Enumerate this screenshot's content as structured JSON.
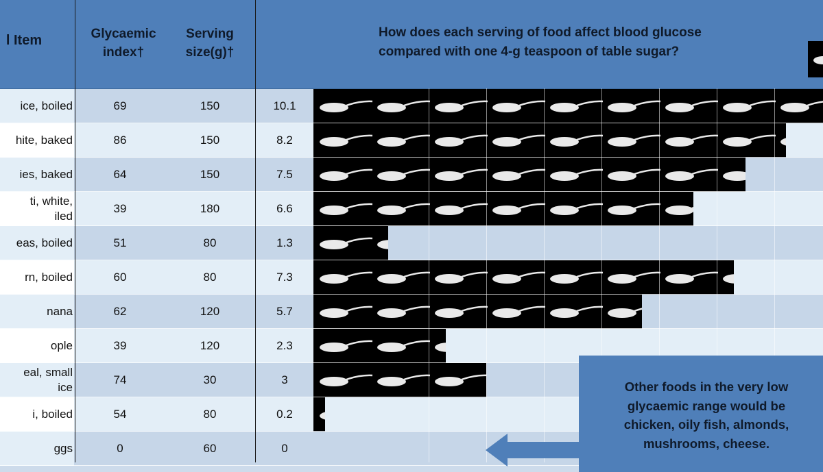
{
  "chart_data": {
    "type": "table",
    "columns": [
      "Food Item",
      "Glycaemic index†",
      "Serving size(g)†",
      "",
      ""
    ],
    "question": "How does each serving of food affect blood glucose compared with one 4-g teaspoon of table sugar?",
    "rows": [
      {
        "food": "ice, boiled",
        "gi": "69",
        "serving": "150",
        "teaspoons": 10.1
      },
      {
        "food": "hite, baked",
        "gi": "86",
        "serving": "150",
        "teaspoons": 8.2
      },
      {
        "food": "ies, baked",
        "gi": "64",
        "serving": "150",
        "teaspoons": 7.5
      },
      {
        "food": "ti, white,\niled",
        "gi": "39",
        "serving": "180",
        "teaspoons": 6.6
      },
      {
        "food": "eas, boiled",
        "gi": "51",
        "serving": "80",
        "teaspoons": 1.3
      },
      {
        "food": "rn, boiled",
        "gi": "60",
        "serving": "80",
        "teaspoons": 7.3
      },
      {
        "food": "nana",
        "gi": "62",
        "serving": "120",
        "teaspoons": 5.7
      },
      {
        "food": "ople",
        "gi": "39",
        "serving": "120",
        "teaspoons": 2.3
      },
      {
        "food": "eal, small\nice",
        "gi": "74",
        "serving": "30",
        "teaspoons": 3
      },
      {
        "food": "i, boiled",
        "gi": "54",
        "serving": "80",
        "teaspoons": 0.2
      },
      {
        "food": "ggs",
        "gi": "0",
        "serving": "60",
        "teaspoons": 0
      }
    ],
    "teaspoon_unit": "one 4-g teaspoon of table sugar"
  },
  "header": {
    "item_label": "l Item",
    "gi_label_1": "Glycaemic",
    "gi_label_2": "index†",
    "serving_label_1": "Serving",
    "serving_label_2": "size(g)†",
    "question_line_1": "How does each serving of food affect blood glucose",
    "question_line_2": "compared with one 4-g teaspoon of table sugar?"
  },
  "callout": {
    "lines": [
      "Other foods in the very low",
      "glycaemic range would be",
      "chicken, oily fish, almonds,",
      "mushrooms, cheese."
    ]
  },
  "colors": {
    "header_blue": "#4f7fb9",
    "row_light": "#e3eef7",
    "row_mid": "#c6d6e8",
    "spoon_bg": "#000000",
    "spoon_fill": "#e9e9e9"
  },
  "icons": {
    "teaspoon": "sugar-teaspoon-icon"
  }
}
